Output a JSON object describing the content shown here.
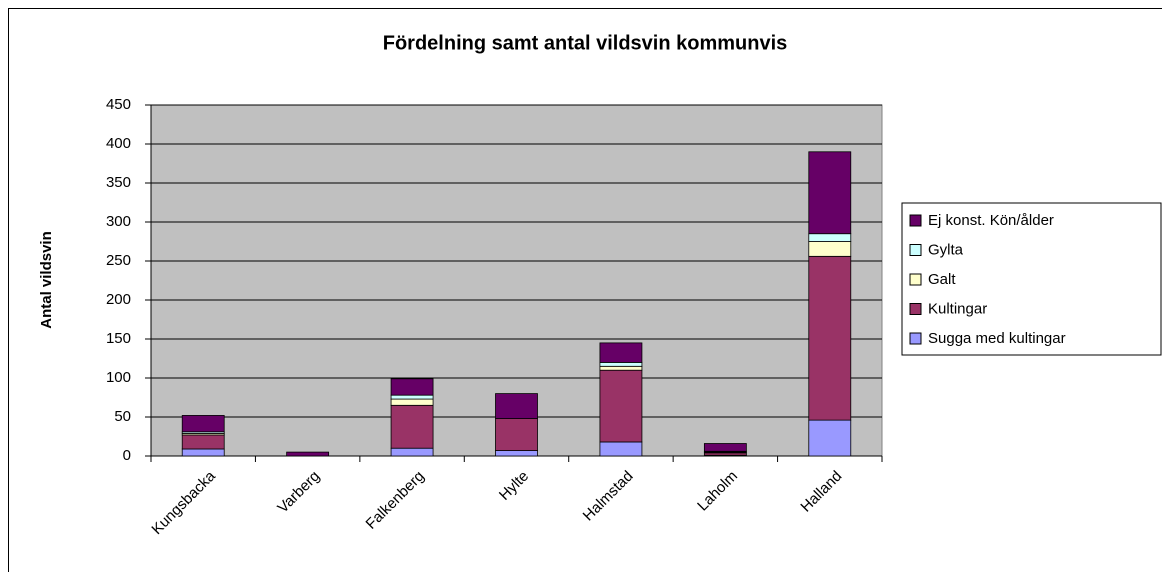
{
  "chart_data": {
    "type": "stacked_bar",
    "title": "Fördelning samt antal vildsvin kommunvis",
    "y_label": "Antal vildsvin",
    "categories": [
      "Kungsbacka",
      "Varberg",
      "Falkenberg",
      "Hylte",
      "Halmstad",
      "Laholm",
      "Halland"
    ],
    "series": [
      {
        "name": "Sugga med kultingar",
        "color": "#9999ff",
        "values": [
          9,
          0,
          10,
          7,
          18,
          1,
          46
        ]
      },
      {
        "name": "Kultingar",
        "color": "#993366",
        "values": [
          18,
          0,
          55,
          41,
          92,
          3,
          210
        ]
      },
      {
        "name": "Galt",
        "color": "#ffffcc",
        "values": [
          2,
          0,
          8,
          0,
          5,
          1,
          19
        ]
      },
      {
        "name": "Gylta",
        "color": "#ccffff",
        "values": [
          2,
          0,
          5,
          0,
          5,
          1,
          10
        ]
      },
      {
        "name": "Ej konst. Kön/ålder",
        "color": "#660066",
        "values": [
          21,
          5,
          21,
          32,
          25,
          10,
          105
        ]
      }
    ],
    "ylim": [
      0,
      450
    ],
    "yticks": [
      0,
      50,
      100,
      150,
      200,
      250,
      300,
      350,
      400,
      450
    ],
    "grid": true,
    "legend": "right",
    "plot_background": "#c0c0c0"
  }
}
